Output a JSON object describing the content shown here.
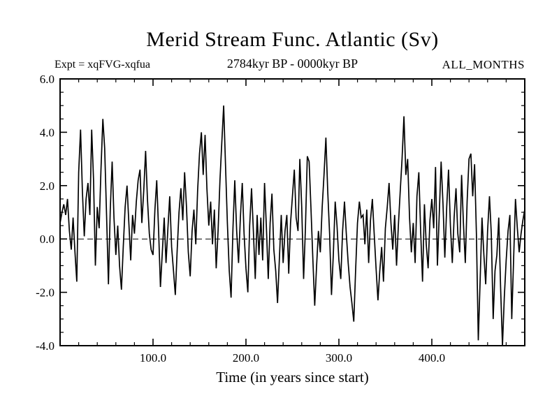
{
  "page": {
    "background": "#ffffff",
    "foreground": "#000000"
  },
  "header": {
    "title": "Merid Stream Func. Atlantic (Sv)",
    "experiment_label": "Expt = xqFVG-xqfua",
    "period_label": "2784kyr BP - 0000kyr BP",
    "months_label": "ALL_MONTHS"
  },
  "chart_data": {
    "type": "line",
    "title": "Merid Stream Func. Atlantic (Sv)",
    "xlabel": "Time (in years since start)",
    "ylabel": "",
    "xlim": [
      0,
      500
    ],
    "ylim": [
      -4.0,
      6.0
    ],
    "grid": false,
    "legend": null,
    "line_color": "#000000",
    "x_major_ticks": [
      100,
      200,
      300,
      400
    ],
    "x_major_tick_labels": [
      "100.0",
      "200.0",
      "300.0",
      "400.0"
    ],
    "x_minor_step": 20,
    "y_major_ticks": [
      6.0,
      4.0,
      2.0,
      0.0,
      -2.0,
      -4.0
    ],
    "y_major_tick_labels": [
      "6.0",
      "4.0",
      "2.0",
      "0.0",
      "-2.0",
      "-4.0"
    ],
    "y_minor_step": 0.5,
    "zero_line": {
      "y": 0.0,
      "style": "dashed"
    },
    "series": [
      {
        "name": "Merid Stream Func. Atlantic",
        "units": "Sv",
        "x_start": 0,
        "x_step": 2,
        "values": [
          0.6,
          1.0,
          1.3,
          0.9,
          1.5,
          0.3,
          -0.4,
          0.8,
          -0.5,
          -1.6,
          2.5,
          4.1,
          1.8,
          0.1,
          1.5,
          2.1,
          0.9,
          4.1,
          2.2,
          -1.0,
          1.2,
          0.4,
          2.6,
          4.5,
          3.4,
          0.9,
          -1.7,
          1.1,
          2.9,
          0.8,
          -0.6,
          0.5,
          -1.0,
          -1.9,
          -0.3,
          1.2,
          2.0,
          0.6,
          -0.8,
          0.9,
          0.2,
          1.4,
          2.2,
          2.6,
          0.6,
          1.8,
          3.3,
          1.5,
          0.2,
          -0.4,
          -0.6,
          1.1,
          2.2,
          0.3,
          -1.8,
          -0.5,
          0.8,
          -0.9,
          0.4,
          1.6,
          -0.3,
          -1.2,
          -2.1,
          -0.4,
          1.0,
          1.9,
          0.7,
          2.5,
          1.2,
          -0.5,
          -1.4,
          0.3,
          1.1,
          -0.2,
          1.8,
          3.2,
          4.0,
          2.4,
          3.9,
          1.9,
          0.5,
          1.4,
          -0.2,
          1.1,
          -1.1,
          0.3,
          2.2,
          3.6,
          5.0,
          2.8,
          0.6,
          -1.2,
          -2.2,
          0.4,
          2.2,
          0.3,
          -0.9,
          0.8,
          2.1,
          0.2,
          -1.1,
          -2.0,
          0.5,
          1.9,
          0.3,
          -1.5,
          0.9,
          -0.6,
          0.8,
          -0.8,
          2.1,
          0.4,
          -1.5,
          0.6,
          1.7,
          -0.4,
          -1.2,
          -2.4,
          -0.7,
          0.9,
          -0.9,
          0.3,
          0.9,
          -1.3,
          0.6,
          1.6,
          2.6,
          0.8,
          0.3,
          3.0,
          1.2,
          -1.5,
          0.4,
          3.1,
          2.9,
          1.1,
          -0.8,
          -2.5,
          -1.0,
          0.3,
          -0.5,
          1.2,
          2.4,
          3.8,
          1.8,
          0.2,
          -2.1,
          -0.6,
          1.4,
          0.5,
          -0.8,
          -1.5,
          0.3,
          1.4,
          0.2,
          -0.9,
          -1.8,
          -2.4,
          -3.1,
          -1.2,
          0.6,
          1.4,
          0.8,
          0.9,
          -0.2,
          1.1,
          -0.9,
          0.7,
          1.5,
          0.2,
          -1.1,
          -2.3,
          -1.2,
          -0.3,
          -1.6,
          0.4,
          1.2,
          2.1,
          0.6,
          -0.4,
          0.9,
          -1.0,
          0.5,
          1.8,
          3.0,
          4.6,
          2.4,
          3.0,
          0.8,
          -0.5,
          0.6,
          -0.9,
          1.6,
          2.5,
          0.3,
          -1.6,
          1.3,
          -0.2,
          -1.1,
          0.7,
          1.5,
          0.4,
          2.7,
          -1.0,
          0.9,
          2.9,
          1.3,
          -0.7,
          1.2,
          2.6,
          0.5,
          -0.9,
          0.8,
          1.9,
          0.2,
          -0.5,
          2.4,
          0.6,
          -0.9,
          1.4,
          3.0,
          3.2,
          1.6,
          2.8,
          0.2,
          -3.8,
          -1.5,
          0.8,
          -0.6,
          -1.7,
          0.3,
          1.6,
          0.2,
          -3.0,
          -1.2,
          -0.6,
          0.8,
          -1.8,
          -4.0,
          -2.2,
          -0.8,
          0.3,
          0.9,
          -3.0,
          -0.8,
          1.5,
          0.4,
          -0.5,
          0.2,
          0.7,
          1.1
        ]
      }
    ]
  }
}
